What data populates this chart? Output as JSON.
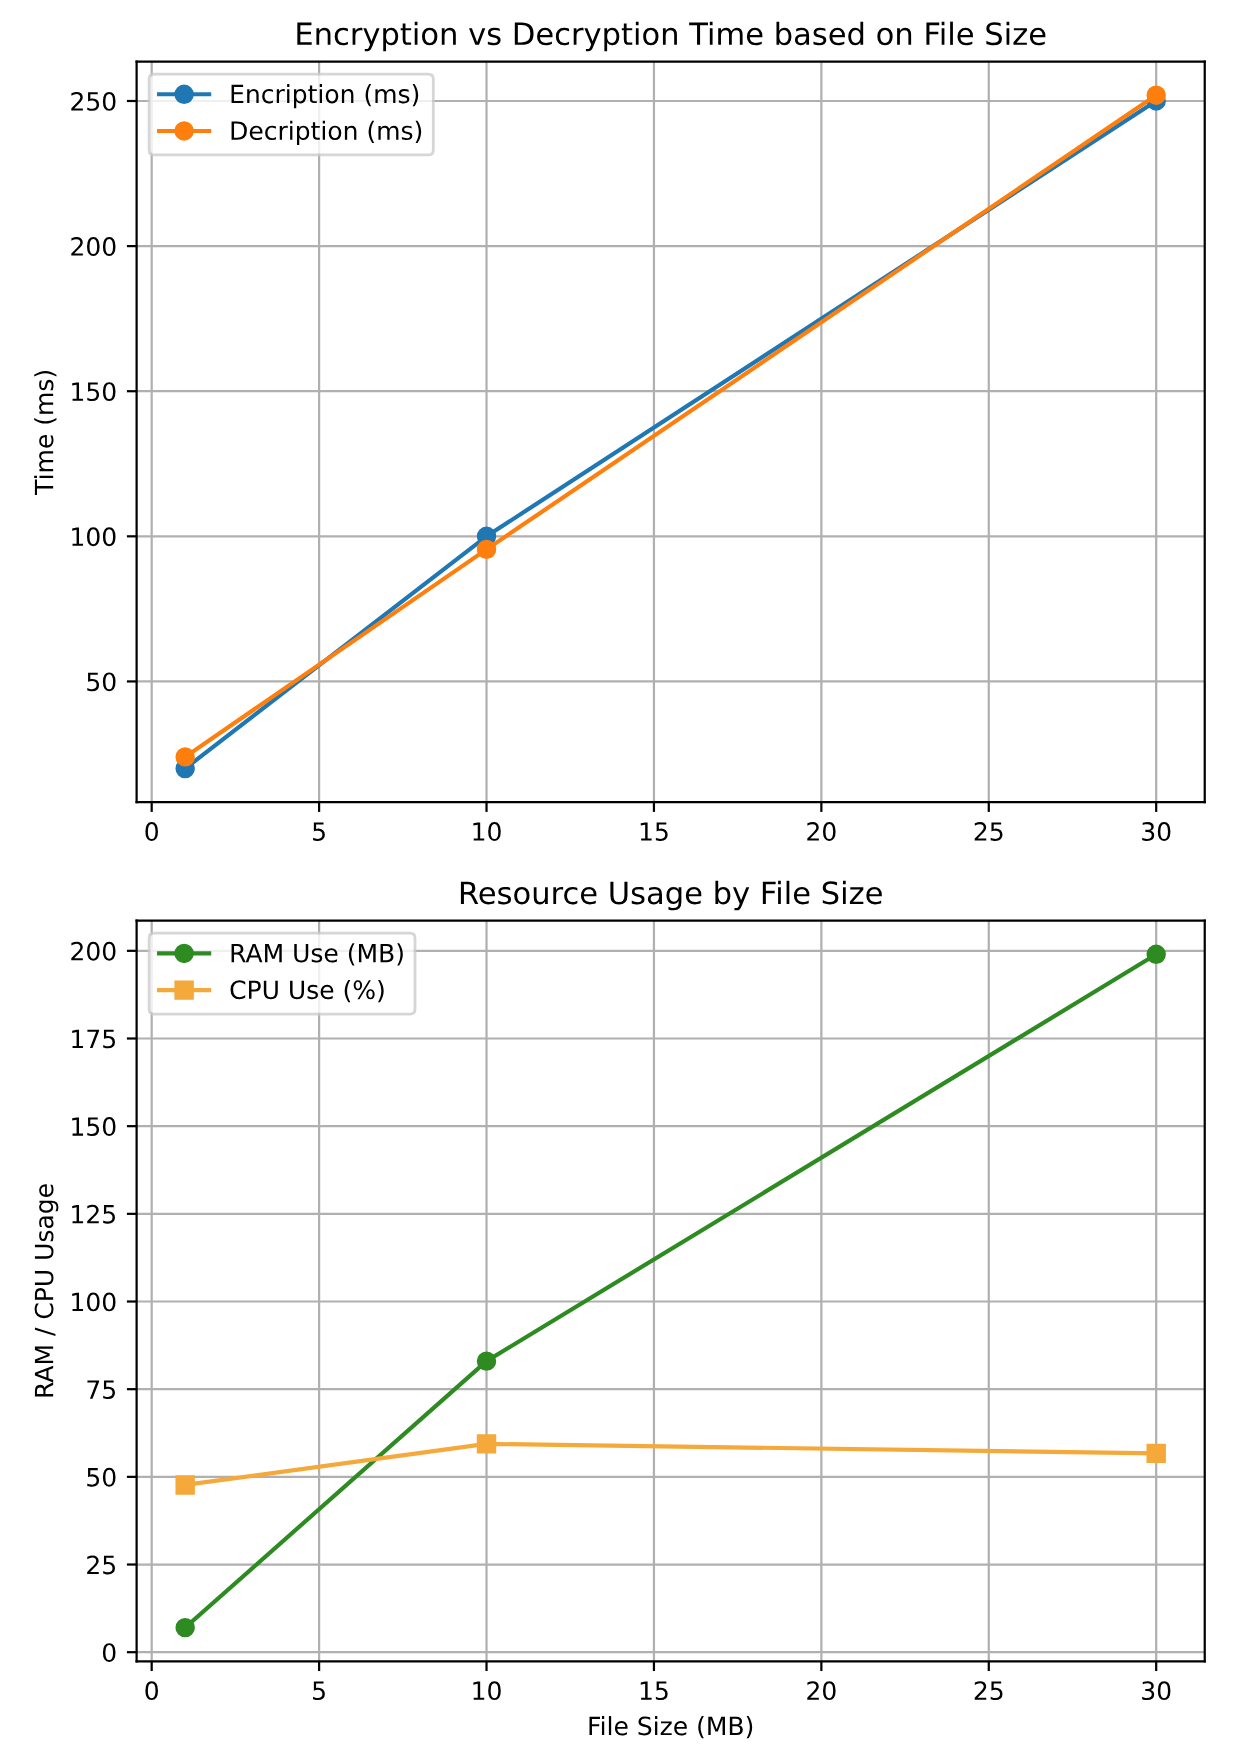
{
  "chart_data": [
    {
      "type": "line",
      "title": "Encryption vs Decryption Time based on File Size",
      "ylabel": "Time (ms)",
      "x": [
        1,
        10,
        30
      ],
      "series": [
        {
          "name": "Encription (ms)",
          "color": "#1f77b4",
          "values": [
            20,
            100,
            250
          ],
          "marker": "circle"
        },
        {
          "name": "Decription (ms)",
          "color": "#ff7f0e",
          "values": [
            24,
            95.5,
            252
          ],
          "marker": "circle"
        }
      ],
      "xlim": [
        -0.45,
        31.45
      ],
      "xticks": [
        0,
        5,
        10,
        15,
        20,
        25,
        30
      ],
      "ylim": [
        8.4,
        263.6
      ],
      "yticks": [
        50,
        100,
        150,
        200,
        250
      ],
      "grid": true,
      "legend": "top left",
      "line_style": "solid"
    },
    {
      "type": "line",
      "title": "Resource Usage by File Size",
      "xlabel": "File Size (MB)",
      "ylabel": "RAM / CPU Usage",
      "x": [
        1,
        10,
        30
      ],
      "series": [
        {
          "name": "RAM Use (MB)",
          "color": "#2e8b22",
          "values": [
            7,
            83,
            199
          ],
          "marker": "circle"
        },
        {
          "name": "CPU Use (%)",
          "color": "#f5a93a",
          "values": [
            47.7,
            59.4,
            56.7
          ],
          "marker": "square"
        }
      ],
      "xlim": [
        -0.45,
        31.45
      ],
      "xticks": [
        0,
        5,
        10,
        15,
        20,
        25,
        30
      ],
      "ylim": [
        -2.6,
        208.6
      ],
      "yticks": [
        0,
        25,
        50,
        75,
        100,
        125,
        150,
        175,
        200
      ],
      "grid": true,
      "legend": "top left",
      "line_style": "solid"
    }
  ]
}
